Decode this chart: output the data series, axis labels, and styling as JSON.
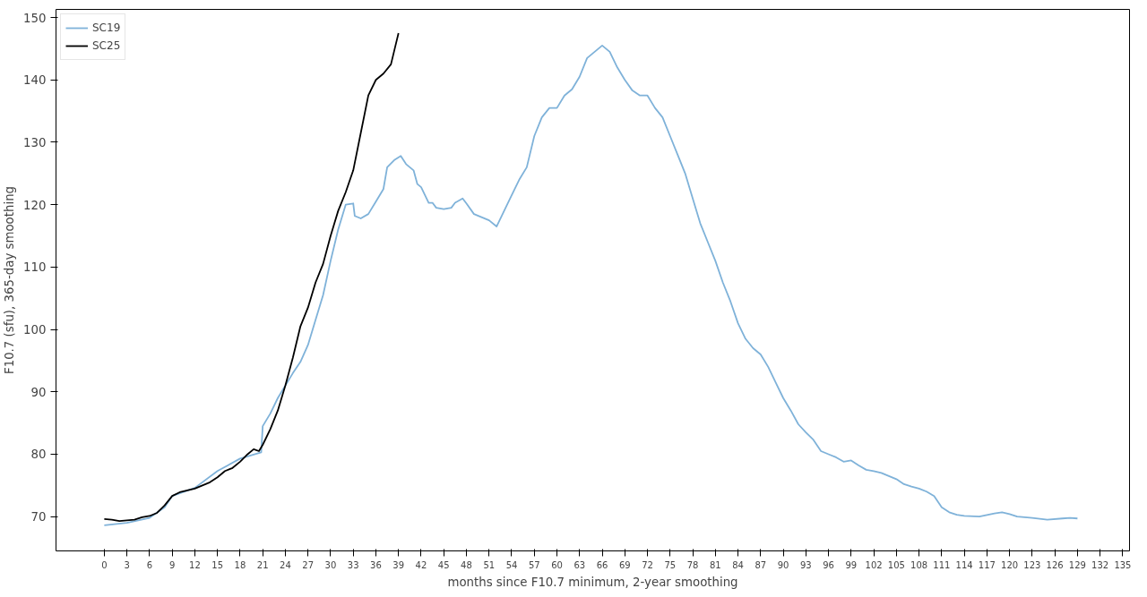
{
  "chart_data": {
    "type": "line",
    "xlabel": "months since F10.7 minimum, 2-year smoothing",
    "ylabel": "F10.7 (sfu), 365-day smoothing",
    "xlim": [
      -6.4,
      135.9
    ],
    "ylim": [
      64.5,
      151.3
    ],
    "xticks": [
      0,
      3,
      6,
      9,
      12,
      15,
      18,
      21,
      24,
      27,
      30,
      33,
      36,
      39,
      42,
      45,
      48,
      51,
      54,
      57,
      60,
      63,
      66,
      69,
      72,
      75,
      78,
      81,
      84,
      87,
      90,
      93,
      96,
      99,
      102,
      105,
      108,
      111,
      114,
      117,
      120,
      123,
      126,
      129,
      132,
      135
    ],
    "yticks": [
      70,
      80,
      90,
      100,
      110,
      120,
      130,
      140,
      150
    ],
    "grid": false,
    "legend": "top left",
    "line_style": "solid",
    "marker": "none",
    "series": [
      {
        "name": "SC19",
        "color": "#7fb2d9",
        "x": [
          0,
          3,
          6,
          8,
          9,
          12,
          15,
          18,
          20,
          20.8,
          21,
          22,
          23,
          24,
          25,
          26,
          27,
          28,
          29,
          30,
          31,
          32,
          33,
          33.2,
          34,
          35,
          36,
          37,
          37.5,
          38.5,
          39.3,
          40,
          41,
          41.5,
          42,
          43,
          43.5,
          44,
          45,
          46,
          46.5,
          47.5,
          48,
          49,
          50,
          51,
          52,
          53,
          54,
          55,
          56,
          57,
          58,
          59,
          60,
          61,
          62,
          63,
          64,
          65,
          66,
          67,
          68,
          69,
          70,
          71,
          72,
          73,
          74,
          75,
          76,
          77,
          78,
          79,
          80,
          81,
          82,
          83,
          84,
          85,
          86,
          87,
          88,
          89,
          90,
          91,
          92,
          93,
          94,
          95,
          96,
          97,
          98,
          99,
          100,
          101,
          102,
          103,
          104,
          105,
          106,
          107,
          108,
          109,
          110,
          111,
          112,
          113,
          114,
          116,
          118,
          119,
          120,
          121,
          123,
          125,
          127,
          128,
          129
        ],
        "values": [
          68.6,
          69.0,
          69.8,
          71.5,
          73.3,
          74.6,
          77.3,
          79.3,
          80.0,
          80.3,
          84.5,
          86.5,
          89.0,
          91.0,
          93.0,
          94.8,
          97.5,
          101.5,
          105.5,
          111,
          116,
          120,
          120.2,
          118.2,
          117.8,
          118.5,
          120.5,
          122.5,
          126,
          127.2,
          127.8,
          126.5,
          125.5,
          123.3,
          122.8,
          120.3,
          120.3,
          119.5,
          119.3,
          119.5,
          120.3,
          121,
          120.2,
          118.5,
          118,
          117.5,
          116.5,
          119,
          121.5,
          124,
          126,
          131,
          134,
          135.5,
          135.5,
          137.5,
          138.5,
          140.5,
          143.5,
          144.5,
          145.5,
          144.5,
          142,
          140,
          138.3,
          137.5,
          137.5,
          135.5,
          134,
          131,
          128,
          125,
          121,
          117,
          114,
          111,
          107.5,
          104.5,
          101,
          98.5,
          97,
          96,
          94,
          91.5,
          89,
          87,
          84.8,
          83.5,
          82.3,
          80.5,
          80,
          79.5,
          78.8,
          79,
          78.2,
          77.5,
          77.3,
          77,
          76.5,
          76,
          75.2,
          74.8,
          74.5,
          74,
          73.3,
          71.5,
          70.7,
          70.3,
          70.1,
          70.0,
          70.5,
          70.7,
          70.4,
          70.0,
          69.8,
          69.5,
          69.7,
          69.8,
          69.7
        ]
      },
      {
        "name": "SC25",
        "color": "#000000",
        "x": [
          0,
          1,
          2,
          3,
          4,
          5,
          6,
          7,
          8,
          9,
          10,
          11,
          12,
          13,
          14,
          15,
          16,
          17,
          18,
          19,
          19.8,
          20.5,
          21,
          22,
          23,
          24,
          25,
          26,
          27,
          28,
          29,
          30,
          31,
          32,
          33,
          34,
          35,
          36,
          37,
          38,
          38.5,
          39
        ],
        "values": [
          69.6,
          69.5,
          69.3,
          69.4,
          69.5,
          69.9,
          70.1,
          70.6,
          71.8,
          73.3,
          73.9,
          74.2,
          74.5,
          75.0,
          75.5,
          76.3,
          77.3,
          77.8,
          78.8,
          80.0,
          80.8,
          80.5,
          81.5,
          84,
          87,
          91,
          95.5,
          100.5,
          103.5,
          107.5,
          110.5,
          115,
          119,
          122,
          125.5,
          131.5,
          137.5,
          140,
          141,
          142.5,
          145,
          147.5
        ]
      }
    ]
  }
}
